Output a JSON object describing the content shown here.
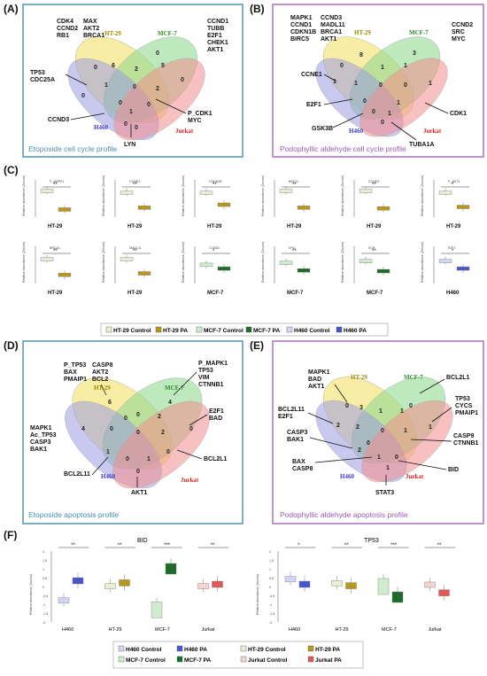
{
  "panels": {
    "A": {
      "label": "(A)",
      "caption": "Etoposide cell cycle profile",
      "cell_lines": [
        "HT-29",
        "MCF-7",
        "H460",
        "Jurkat"
      ],
      "numbers": [
        "0",
        "6",
        "0",
        "2",
        "5",
        "0",
        "1",
        "0",
        "2",
        "0",
        "0",
        "0",
        "1",
        "0",
        "0"
      ],
      "gene_groups": [
        {
          "id": "tl",
          "genes": [
            "CDK4",
            "CCND2",
            "RB1"
          ]
        },
        {
          "id": "tm",
          "genes": [
            "MAX",
            "AKT2",
            "BRCA1"
          ]
        },
        {
          "id": "tr",
          "genes": [
            "CCND1",
            "TUBB",
            "E2F1",
            "CHEK1",
            "AKT1"
          ]
        },
        {
          "id": "ml",
          "genes": [
            "TP53",
            "CDC25A"
          ]
        },
        {
          "id": "mr",
          "genes": [
            "P_CDK1",
            "MYC"
          ]
        },
        {
          "id": "bl",
          "genes": [
            "CCND3"
          ]
        },
        {
          "id": "bm",
          "genes": [
            "LYN"
          ]
        }
      ]
    },
    "B": {
      "label": "(B)",
      "caption": "Podophyllic aldehyde cell cycle profile",
      "cell_lines": [
        "HT-29",
        "MCF-7",
        "H460",
        "Jurkat"
      ],
      "numbers": [
        "0",
        "8",
        "3",
        "1",
        "1",
        "1",
        "1",
        "0",
        "0",
        "1",
        "0",
        "1",
        "0",
        "1",
        "0"
      ],
      "gene_groups": [
        {
          "id": "tl",
          "genes": [
            "MAPK1",
            "CCND1",
            "CDKN1B",
            "BIRC5"
          ]
        },
        {
          "id": "tm",
          "genes": [
            "CCND3",
            "MADL11",
            "BRCA1",
            "AKT1"
          ]
        },
        {
          "id": "tr",
          "genes": [
            "CCND2",
            "SRC",
            "MYC"
          ]
        },
        {
          "id": "ml",
          "genes": [
            "CCNE1"
          ]
        },
        {
          "id": "ml2",
          "genes": [
            "E2F1"
          ]
        },
        {
          "id": "mr",
          "genes": [
            "CDK1"
          ]
        },
        {
          "id": "bl",
          "genes": [
            "GSK3B"
          ]
        },
        {
          "id": "br",
          "genes": [
            "TUBA1A"
          ]
        }
      ]
    },
    "C": {
      "label": "(C)",
      "ylabel": "Relative abundance (Zscore)",
      "plots": [
        {
          "title": "P_MAPK1",
          "sig": "**",
          "x": "HT-29"
        },
        {
          "title": "CCND1",
          "sig": "**",
          "x": "HT-29"
        },
        {
          "title": "CDKN1B",
          "sig": "**",
          "x": "HT-29"
        },
        {
          "title": "BIRC5",
          "sig": "**",
          "x": "HT-29"
        },
        {
          "title": "CCND3",
          "sig": "**",
          "x": "HT-29"
        },
        {
          "title": "P_AKT1",
          "sig": "*",
          "x": "HT-29"
        },
        {
          "title": "BRCA1",
          "sig": "**",
          "x": "HT-29"
        },
        {
          "title": "MADL11",
          "sig": "**",
          "x": "HT-29"
        },
        {
          "title": "CCND2",
          "sig": "*",
          "x": "MCF-7"
        },
        {
          "title": "MYC",
          "sig": "**",
          "x": "MCF-7"
        },
        {
          "title": "SCR",
          "sig": "**",
          "x": "MCF-7"
        },
        {
          "title": "E2F1",
          "sig": "*",
          "x": "H460"
        }
      ],
      "legend": [
        "HT-29 Control",
        "HT-29 PA",
        "MCF-7 Control",
        "MCF-7 PA",
        "H460 Control",
        "H460 PA"
      ]
    },
    "D": {
      "label": "(D)",
      "caption": "Etoposide apoptosis profile",
      "cell_lines": [
        "HT-29",
        "MCF-7",
        "H460",
        "Jurkat"
      ],
      "numbers": [
        "6",
        "0",
        "4",
        "0",
        "2",
        "4",
        "0",
        "0",
        "2",
        "0",
        "1",
        "0",
        "0",
        "1",
        "0"
      ],
      "gene_groups": [
        {
          "id": "tl",
          "genes": [
            "P_TP53",
            "BAX",
            "PMAIP1"
          ]
        },
        {
          "id": "tm",
          "genes": [
            "CASP8",
            "AKT2",
            "BCL2"
          ]
        },
        {
          "id": "tr",
          "genes": [
            "P_MAPK1",
            "TP53",
            "VIM",
            "CTNNB1"
          ]
        },
        {
          "id": "mr",
          "genes": [
            "E2F1",
            "BAD"
          ]
        },
        {
          "id": "ml",
          "genes": [
            "MAPK1",
            "Ac_TP53",
            "CASP3",
            "BAK1"
          ]
        },
        {
          "id": "mr2",
          "genes": [
            "BCL2L1"
          ]
        },
        {
          "id": "bl",
          "genes": [
            "BCL2L11"
          ]
        },
        {
          "id": "bm",
          "genes": [
            "AKT1"
          ]
        }
      ]
    },
    "E": {
      "label": "(E)",
      "caption": "Podophyllic aldehyde apoptosis profile",
      "cell_lines": [
        "HT-29",
        "MCF-7",
        "H460",
        "Jurkat"
      ],
      "numbers": [
        "0",
        "3",
        "0",
        "1",
        "1",
        "2",
        "2",
        "0",
        "1",
        "1",
        "0",
        "2",
        "1",
        "0",
        "1"
      ],
      "gene_groups": [
        {
          "id": "tl",
          "genes": [
            "MAPK1",
            "BAD",
            "AKT1"
          ]
        },
        {
          "id": "tr",
          "genes": [
            "BCL2L1"
          ]
        },
        {
          "id": "ml",
          "genes": [
            "BCL2L11",
            "E2F1"
          ]
        },
        {
          "id": "mr",
          "genes": [
            "TP53",
            "CYCS",
            "PMAIP1"
          ]
        },
        {
          "id": "ml2",
          "genes": [
            "CASP3",
            "BAK1"
          ]
        },
        {
          "id": "mr2",
          "genes": [
            "CASP9",
            "CTNNB1"
          ]
        },
        {
          "id": "bl",
          "genes": [
            "BAX",
            "CASP8"
          ]
        },
        {
          "id": "br",
          "genes": [
            "BID"
          ]
        },
        {
          "id": "bm",
          "genes": [
            "STAT3"
          ]
        }
      ]
    },
    "F": {
      "label": "(F)",
      "ylabel": "Relative abundance (Zscore)",
      "plots": [
        {
          "title": "BID",
          "sigs": [
            "**",
            "**",
            "***",
            "**"
          ],
          "x": [
            "H460",
            "HT-29",
            "MCF-7",
            "Jurkat"
          ]
        },
        {
          "title": "TP53",
          "sigs": [
            "*",
            "**",
            "***",
            "**"
          ],
          "x": [
            "H460",
            "HT-29",
            "MCF-7",
            "Jurkat"
          ]
        }
      ],
      "legend": [
        "H460 Control",
        "H460 PA",
        "HT-29 Control",
        "HT-29 PA",
        "MCF-7 Control",
        "MCF-7 PA",
        "Jurkat Control",
        "Jurkat PA"
      ]
    }
  },
  "colors": {
    "ht29": "#f2e36a",
    "mcf7": "#7fd27f",
    "h460": "#8b8bdc",
    "jurkat": "#f07a7a",
    "frameA": "#5b9bb5",
    "frameB": "#b07ac8",
    "ht29_ctrl": "#ecebd5",
    "ht29_pa": "#b5981c",
    "mcf7_ctrl": "#cfeccf",
    "mcf7_pa": "#1f6b2a",
    "h460_ctrl": "#d4d4f4",
    "h460_pa": "#4a55c8",
    "jurkat_ctrl": "#f6d2d2",
    "jurkat_pa": "#e05858"
  }
}
